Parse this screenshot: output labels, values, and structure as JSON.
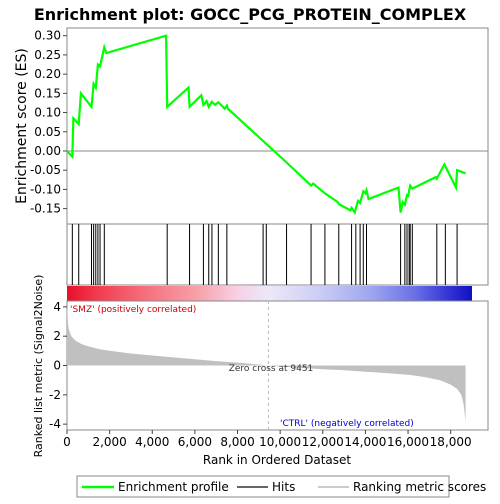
{
  "chart_data": [
    {
      "type": "line",
      "title": "Enrichment plot: GOCC_PCG_PROTEIN_COMPLEX",
      "ylabel": "Enrichment score (ES)",
      "ylim": [
        -0.19,
        0.32
      ],
      "yticks": [
        -0.15,
        -0.1,
        -0.05,
        0.0,
        0.05,
        0.1,
        0.15,
        0.2,
        0.25,
        0.3
      ],
      "ytick_labels": [
        "-0.15",
        "-0.10",
        "-0.05",
        "0.00",
        "0.05",
        "0.10",
        "0.15",
        "0.20",
        "0.25",
        "0.30"
      ],
      "xlim": [
        0,
        19000
      ],
      "series": [
        {
          "name": "Enrichment profile",
          "color": "#00ff00",
          "x": [
            0,
            250,
            300,
            550,
            650,
            1150,
            1250,
            1350,
            1450,
            1550,
            1750,
            1850,
            4650,
            4700,
            5700,
            5750,
            6300,
            6400,
            6550,
            6650,
            6800,
            6950,
            7100,
            7400,
            7500,
            7550,
            10300,
            11450,
            11550,
            12100,
            12700,
            12750,
            13300,
            13350,
            13500,
            13550,
            13650,
            13750,
            13900,
            14000,
            14050,
            14150,
            15550,
            15650,
            15750,
            15850,
            15950,
            16000,
            16100,
            16200,
            17300,
            17350,
            17700,
            17750,
            18250,
            18300,
            18700
          ],
          "y": [
            0.0,
            -0.015,
            0.085,
            0.07,
            0.15,
            0.115,
            0.175,
            0.165,
            0.225,
            0.22,
            0.27,
            0.255,
            0.3,
            0.115,
            0.165,
            0.115,
            0.145,
            0.12,
            0.13,
            0.115,
            0.128,
            0.12,
            0.127,
            0.11,
            0.118,
            0.11,
            -0.03,
            -0.09,
            -0.085,
            -0.11,
            -0.133,
            -0.138,
            -0.155,
            -0.148,
            -0.16,
            -0.15,
            -0.13,
            -0.135,
            -0.105,
            -0.11,
            -0.102,
            -0.125,
            -0.095,
            -0.16,
            -0.133,
            -0.14,
            -0.115,
            -0.117,
            -0.09,
            -0.098,
            -0.068,
            -0.072,
            -0.035,
            -0.04,
            -0.095,
            -0.05,
            -0.058
          ]
        }
      ],
      "hits": [
        250,
        550,
        1150,
        1250,
        1350,
        1450,
        1550,
        1750,
        4700,
        5750,
        6400,
        6650,
        6800,
        7100,
        7500,
        9200,
        9350,
        10300,
        11450,
        12100,
        12750,
        13350,
        13550,
        13750,
        13900,
        14050,
        15650,
        15850,
        15950,
        16050,
        16100,
        16200,
        17350,
        17750,
        18300
      ],
      "legend": [
        "Enrichment profile",
        "Hits",
        "Ranking metric scores"
      ],
      "legend_placement": "bottom",
      "grid": false
    },
    {
      "type": "area",
      "xlabel": "Rank in Ordered Dataset",
      "ylabel": "Ranked list metric (Signal2Noise)",
      "xlim": [
        0,
        19000
      ],
      "xticks": [
        0,
        2000,
        4000,
        6000,
        8000,
        10000,
        12000,
        14000,
        16000,
        18000
      ],
      "xtick_labels": [
        "0",
        "2,000",
        "4,000",
        "6,000",
        "8,000",
        "10,000",
        "12,000",
        "14,000",
        "16,000",
        "18,000"
      ],
      "ylim": [
        -4.4,
        4.4
      ],
      "yticks": [
        -4,
        -2,
        0,
        2,
        4
      ],
      "ytick_labels": [
        "-4",
        "-2",
        "0",
        "2",
        "4"
      ],
      "x": [
        0,
        50,
        100,
        200,
        400,
        700,
        1000,
        1500,
        2000,
        3000,
        4000,
        5000,
        6000,
        7000,
        8000,
        9000,
        9451,
        10000,
        11000,
        12000,
        13000,
        14000,
        15000,
        16000,
        16500,
        17000,
        17500,
        18000,
        18300,
        18500,
        18600,
        18700
      ],
      "values": [
        4.1,
        2.8,
        2.4,
        2.0,
        1.7,
        1.45,
        1.3,
        1.12,
        1.0,
        0.82,
        0.68,
        0.55,
        0.42,
        0.3,
        0.2,
        0.07,
        0.0,
        -0.07,
        -0.17,
        -0.26,
        -0.33,
        -0.42,
        -0.52,
        -0.63,
        -0.72,
        -0.85,
        -1.0,
        -1.3,
        -1.6,
        -2.0,
        -2.6,
        -3.8
      ],
      "fill": "#c0c0c0",
      "annotations": [
        "Zero cross at 9451",
        "'SMZ' (positively correlated)",
        "'CTRL' (negatively correlated)"
      ],
      "zero_cross": 9451
    }
  ]
}
